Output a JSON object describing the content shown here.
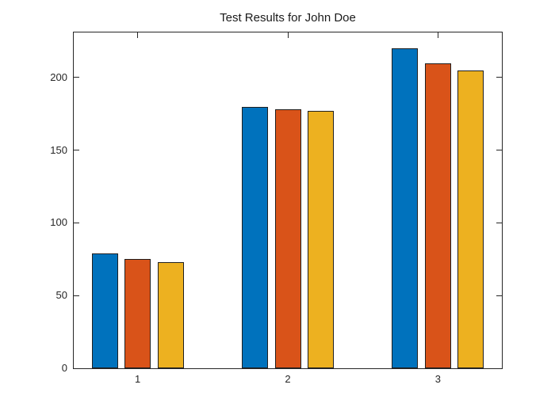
{
  "title": "Test Results for John Doe",
  "colors": {
    "background": "#ffffff",
    "axis": "#262626",
    "bar_edge": "#1f1f1f",
    "series_blue": "#0072BD",
    "series_orange": "#D95319",
    "series_yellow": "#EDB120"
  },
  "chart_data": {
    "type": "bar",
    "title": "Test Results for John Doe",
    "categories": [
      "1",
      "2",
      "3"
    ],
    "series": [
      {
        "color": "#0072BD",
        "values": [
          79,
          180,
          220
        ]
      },
      {
        "color": "#D95319",
        "values": [
          75,
          178,
          210
        ]
      },
      {
        "color": "#EDB120",
        "values": [
          73,
          177,
          205
        ]
      }
    ],
    "xlabel": "",
    "ylabel": "",
    "y_ticks": [
      0,
      50,
      100,
      150,
      200
    ],
    "ylim": [
      0,
      231
    ],
    "xlim": [
      0.574,
      3.426
    ],
    "grid": false,
    "legend": "none",
    "tick_direction": "in",
    "box": true
  }
}
